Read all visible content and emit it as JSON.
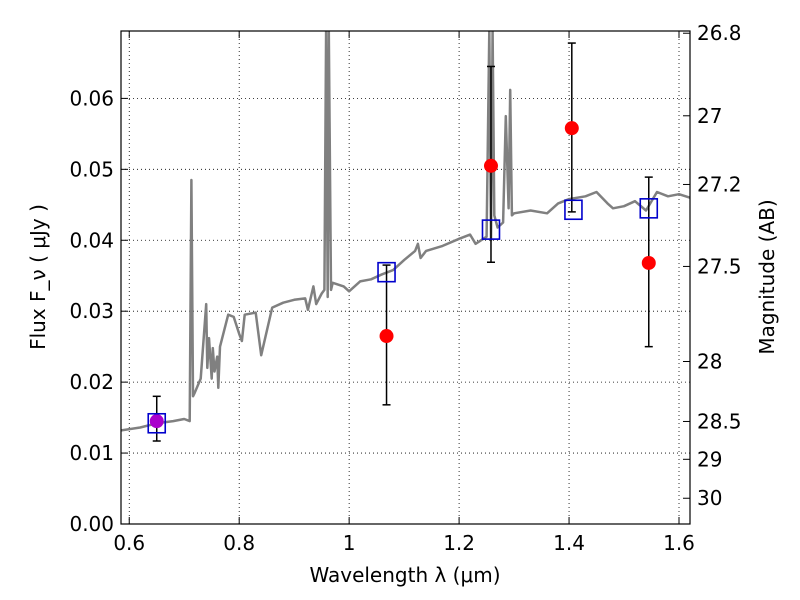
{
  "chart_data": {
    "type": "scatter",
    "xlabel": "Wavelength  λ (μm)",
    "ylabel": "Flux  F_ν  ( μJy )",
    "ylabel_right": "Magnitude (AB)",
    "xlim": [
      0.585,
      1.62
    ],
    "ylim": [
      0.0,
      0.0695
    ],
    "grid": true,
    "x_ticks": [
      "0.6",
      "0.8",
      "1",
      "1.2",
      "1.4",
      "1.6"
    ],
    "x_tick_values": [
      0.6,
      0.8,
      1.0,
      1.2,
      1.4,
      1.6
    ],
    "y_ticks": [
      "0.00",
      "0.01",
      "0.02",
      "0.03",
      "0.04",
      "0.05",
      "0.06"
    ],
    "y_tick_values": [
      0.0,
      0.01,
      0.02,
      0.03,
      0.04,
      0.05,
      0.06
    ],
    "right_ticks": [
      "26.8",
      "27",
      "27.2",
      "27.5",
      "28",
      "28.5",
      "29",
      "30"
    ],
    "right_tick_values": [
      26.8,
      27.0,
      27.2,
      27.5,
      28.0,
      28.5,
      29.0,
      30.0
    ],
    "colors": {
      "spectrum": "#808080",
      "observed": "#ff0000",
      "model": "#0000cc",
      "observed_overlap": "#aa00cc",
      "errorbar": "#000000"
    },
    "series": [
      {
        "kind": "line",
        "color": "#808080",
        "x": [
          0.585,
          0.62,
          0.65,
          0.68,
          0.7,
          0.71,
          0.713,
          0.716,
          0.719,
          0.73,
          0.74,
          0.742,
          0.745,
          0.75,
          0.752,
          0.755,
          0.76,
          0.762,
          0.765,
          0.78,
          0.79,
          0.8,
          0.805,
          0.81,
          0.83,
          0.84,
          0.86,
          0.88,
          0.9,
          0.92,
          0.925,
          0.935,
          0.94,
          0.95,
          0.955,
          0.958,
          0.961,
          0.963,
          0.967,
          0.97,
          0.99,
          1.0,
          1.02,
          1.04,
          1.06,
          1.08,
          1.1,
          1.12,
          1.125,
          1.13,
          1.14,
          1.17,
          1.2,
          1.22,
          1.23,
          1.25,
          1.255,
          1.258,
          1.261,
          1.264,
          1.27,
          1.28,
          1.285,
          1.29,
          1.293,
          1.296,
          1.3,
          1.33,
          1.36,
          1.38,
          1.4,
          1.43,
          1.45,
          1.47,
          1.48,
          1.5,
          1.52,
          1.54,
          1.56,
          1.58,
          1.6,
          1.62
        ],
        "y": [
          0.0132,
          0.0136,
          0.0142,
          0.0145,
          0.0148,
          0.0145,
          0.0485,
          0.018,
          0.0185,
          0.0205,
          0.031,
          0.022,
          0.0262,
          0.0205,
          0.0248,
          0.0215,
          0.0236,
          0.0192,
          0.025,
          0.0295,
          0.0292,
          0.0268,
          0.0258,
          0.0295,
          0.0298,
          0.0238,
          0.0305,
          0.0312,
          0.0316,
          0.0318,
          0.0302,
          0.0335,
          0.031,
          0.0325,
          0.033,
          0.0695,
          0.032,
          0.0695,
          0.033,
          0.034,
          0.0335,
          0.0328,
          0.0342,
          0.0345,
          0.0352,
          0.0358,
          0.0372,
          0.0385,
          0.0395,
          0.0375,
          0.0385,
          0.0392,
          0.0402,
          0.0408,
          0.0395,
          0.0405,
          0.0695,
          0.04,
          0.0695,
          0.0435,
          0.0418,
          0.0425,
          0.0575,
          0.0445,
          0.0612,
          0.0435,
          0.0438,
          0.0442,
          0.0438,
          0.0452,
          0.0458,
          0.0462,
          0.0468,
          0.0452,
          0.0445,
          0.0448,
          0.0455,
          0.0442,
          0.0468,
          0.0462,
          0.0465,
          0.046
        ]
      },
      {
        "kind": "points-with-errorbars",
        "marker": "filled-circle",
        "points": [
          {
            "x": 0.65,
            "y": 0.0145,
            "err_lo": 0.0028,
            "err_hi": 0.0035,
            "overlap": true
          },
          {
            "x": 1.068,
            "y": 0.0265,
            "err_lo": 0.0097,
            "err_hi": 0.01
          },
          {
            "x": 1.258,
            "y": 0.0505,
            "err_lo": 0.0136,
            "err_hi": 0.014
          },
          {
            "x": 1.405,
            "y": 0.0558,
            "err_lo": 0.0118,
            "err_hi": 0.012
          },
          {
            "x": 1.545,
            "y": 0.0368,
            "err_lo": 0.0118,
            "err_hi": 0.0121
          }
        ]
      },
      {
        "kind": "points",
        "marker": "open-square",
        "x": [
          0.65,
          1.068,
          1.258,
          1.408,
          1.545
        ],
        "y": [
          0.0142,
          0.0355,
          0.0415,
          0.0443,
          0.0445
        ]
      }
    ]
  }
}
